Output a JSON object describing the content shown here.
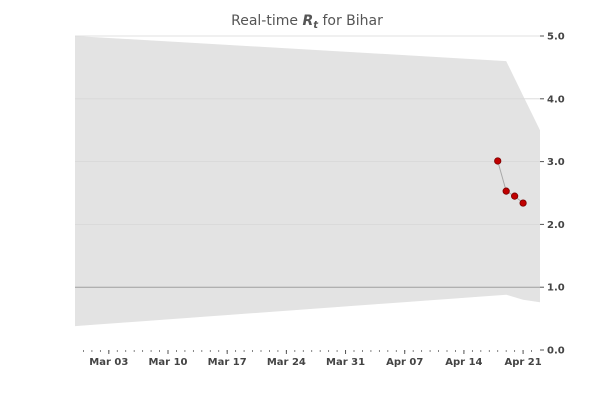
{
  "chart_data": {
    "type": "line",
    "title": {
      "prefix": "Real-time ",
      "symbol": "R",
      "subscript": "t",
      "suffix": " for Bihar"
    },
    "xlabel": "",
    "ylabel": "",
    "x_tick_labels": [
      "Mar 03",
      "Mar 10",
      "Mar 17",
      "Mar 24",
      "Mar 31",
      "Apr 07",
      "Apr 14",
      "Apr 21"
    ],
    "x_tick_dates": [
      "2020-03-03",
      "2020-03-10",
      "2020-03-17",
      "2020-03-24",
      "2020-03-31",
      "2020-04-07",
      "2020-04-14",
      "2020-04-21"
    ],
    "x_range": [
      "2020-02-28",
      "2020-04-23"
    ],
    "ylim": [
      0.0,
      5.0
    ],
    "y_ticks": [
      0.0,
      1.0,
      2.0,
      3.0,
      4.0,
      5.0
    ],
    "y_tick_labels": [
      "0.0",
      "1.0",
      "2.0",
      "3.0",
      "4.0",
      "5.0"
    ],
    "y_axis_side": "right",
    "grid": "horizontal",
    "reference_line": 1.0,
    "series": [
      {
        "x": [
          "2020-04-18",
          "2020-04-19",
          "2020-04-20",
          "2020-04-21"
        ],
        "y": [
          3.01,
          2.53,
          2.45,
          2.34
        ]
      }
    ],
    "interval": {
      "x": [
        "2020-02-28",
        "2020-04-19",
        "2020-04-21",
        "2020-04-23"
      ],
      "low": [
        0.38,
        0.88,
        0.8,
        0.76
      ],
      "high": [
        5.0,
        4.6,
        4.05,
        3.5
      ]
    },
    "colors": {
      "interval": "#e3e3e3",
      "point": "#c00000",
      "point_edge": "#7a0000",
      "line": "#a8a8a8",
      "grid": "#d8d8d8",
      "reference": "#a0a0a0"
    }
  }
}
